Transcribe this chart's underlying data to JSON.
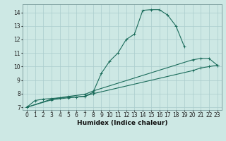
{
  "title": "",
  "xlabel": "Humidex (Indice chaleur)",
  "ylabel": "",
  "xlim": [
    -0.5,
    23.5
  ],
  "ylim": [
    6.8,
    14.6
  ],
  "xticks": [
    0,
    1,
    2,
    3,
    4,
    5,
    6,
    7,
    8,
    9,
    10,
    11,
    12,
    13,
    14,
    15,
    16,
    17,
    18,
    19,
    20,
    21,
    22,
    23
  ],
  "yticks": [
    7,
    8,
    9,
    10,
    11,
    12,
    13,
    14
  ],
  "background_color": "#cde8e4",
  "grid_color": "#aacccc",
  "line_color": "#1a6b5a",
  "line1": {
    "x": [
      0,
      1,
      2,
      3,
      4,
      5,
      6,
      7,
      8,
      9,
      10,
      11,
      12,
      13,
      14,
      15,
      16,
      17,
      18,
      19
    ],
    "y": [
      7.0,
      7.5,
      7.6,
      7.65,
      7.7,
      7.75,
      7.75,
      7.8,
      8.1,
      9.5,
      10.4,
      11.0,
      12.0,
      12.4,
      14.15,
      14.2,
      14.2,
      13.8,
      13.0,
      11.5
    ]
  },
  "line2": {
    "x": [
      0,
      3,
      5,
      7,
      8,
      20,
      21,
      22,
      23
    ],
    "y": [
      7.0,
      7.6,
      7.8,
      7.95,
      8.2,
      10.5,
      10.6,
      10.6,
      10.1
    ]
  },
  "line3": {
    "x": [
      0,
      3,
      5,
      7,
      8,
      20,
      21,
      22,
      23
    ],
    "y": [
      7.0,
      7.55,
      7.7,
      7.82,
      8.0,
      9.7,
      9.9,
      10.0,
      10.1
    ]
  },
  "figsize": [
    3.2,
    2.0
  ],
  "dpi": 100,
  "tick_fontsize": 5.5,
  "xlabel_fontsize": 6.5
}
